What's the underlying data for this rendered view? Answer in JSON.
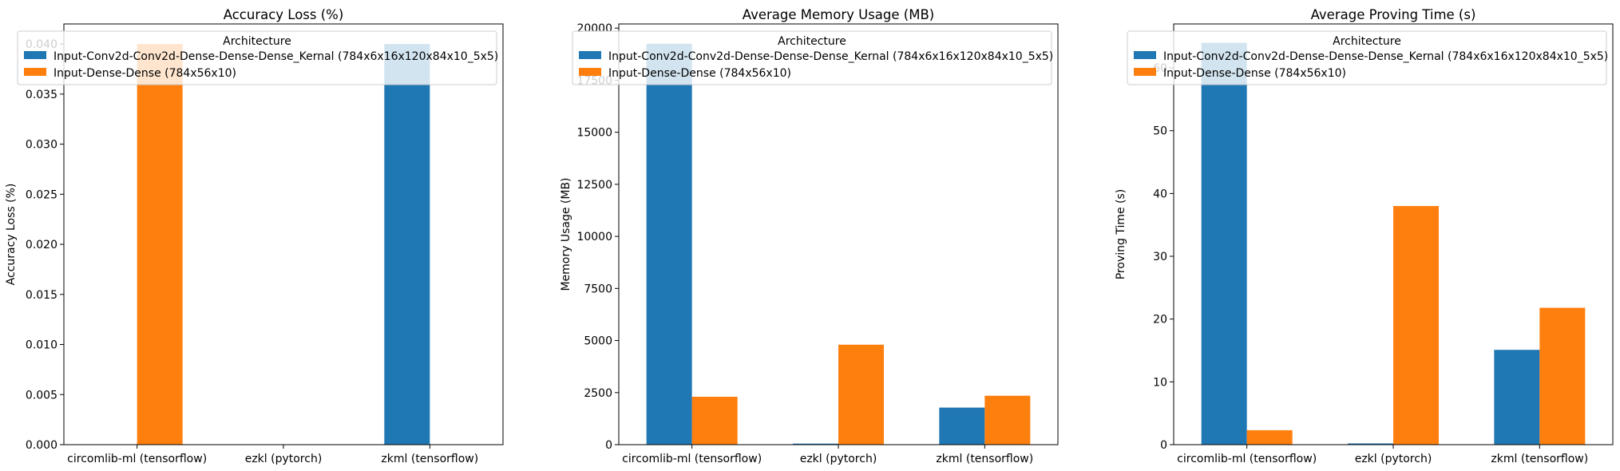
{
  "chart_data": [
    {
      "type": "bar",
      "title": "Accuracy Loss (%)",
      "xlabel": "",
      "ylabel": "Accuracy Loss (%)",
      "categories": [
        "circomlib-ml (tensorflow)",
        "ezkl (pytorch)",
        "zkml (tensorflow)"
      ],
      "ylim": [
        0,
        0.042
      ],
      "yticks": [
        0.0,
        0.005,
        0.01,
        0.015,
        0.02,
        0.025,
        0.03,
        0.035,
        0.04
      ],
      "ytick_labels": [
        "0.000",
        "0.005",
        "0.010",
        "0.015",
        "0.020",
        "0.025",
        "0.030",
        "0.035",
        "0.040"
      ],
      "legend_title": "Architecture",
      "legend_position": "upper-left",
      "series": [
        {
          "name": "Input-Conv2d-Conv2d-Dense-Dense-Dense_Kernal (784x6x16x120x84x10_5x5)",
          "color": "#1f77b4",
          "values": [
            0,
            0,
            0.04
          ]
        },
        {
          "name": "Input-Dense-Dense (784x56x10)",
          "color": "#ff7f0e",
          "values": [
            0.04,
            0,
            0
          ]
        }
      ]
    },
    {
      "type": "bar",
      "title": "Average Memory Usage (MB)",
      "xlabel": "",
      "ylabel": "Memory Usage (MB)",
      "categories": [
        "circomlib-ml (tensorflow)",
        "ezkl (pytorch)",
        "zkml (tensorflow)"
      ],
      "ylim": [
        0,
        20200
      ],
      "yticks": [
        0,
        2500,
        5000,
        7500,
        10000,
        12500,
        15000,
        17500,
        20000
      ],
      "ytick_labels": [
        "0",
        "2500",
        "5000",
        "7500",
        "10000",
        "12500",
        "15000",
        "17500",
        "20000"
      ],
      "legend_title": "Architecture",
      "legend_position": "upper-left",
      "series": [
        {
          "name": "Input-Conv2d-Conv2d-Dense-Dense-Dense_Kernal (784x6x16x120x84x10_5x5)",
          "color": "#1f77b4",
          "values": [
            19250,
            50,
            1780
          ]
        },
        {
          "name": "Input-Dense-Dense (784x56x10)",
          "color": "#ff7f0e",
          "values": [
            2300,
            4800,
            2350
          ]
        }
      ]
    },
    {
      "type": "bar",
      "title": "Average Proving Time (s)",
      "xlabel": "",
      "ylabel": "Proving Time (s)",
      "categories": [
        "circomlib-ml (tensorflow)",
        "ezkl (pytorch)",
        "zkml (tensorflow)"
      ],
      "ylim": [
        0,
        67
      ],
      "yticks": [
        0,
        10,
        20,
        30,
        40,
        50,
        60
      ],
      "ytick_labels": [
        "0",
        "10",
        "20",
        "30",
        "40",
        "50",
        "60"
      ],
      "legend_title": "Architecture",
      "legend_position": "upper-left",
      "series": [
        {
          "name": "Input-Conv2d-Conv2d-Dense-Dense-Dense_Kernal (784x6x16x120x84x10_5x5)",
          "color": "#1f77b4",
          "values": [
            64,
            0.2,
            15.1
          ]
        },
        {
          "name": "Input-Dense-Dense (784x56x10)",
          "color": "#ff7f0e",
          "values": [
            2.3,
            38,
            21.8
          ]
        }
      ]
    }
  ]
}
